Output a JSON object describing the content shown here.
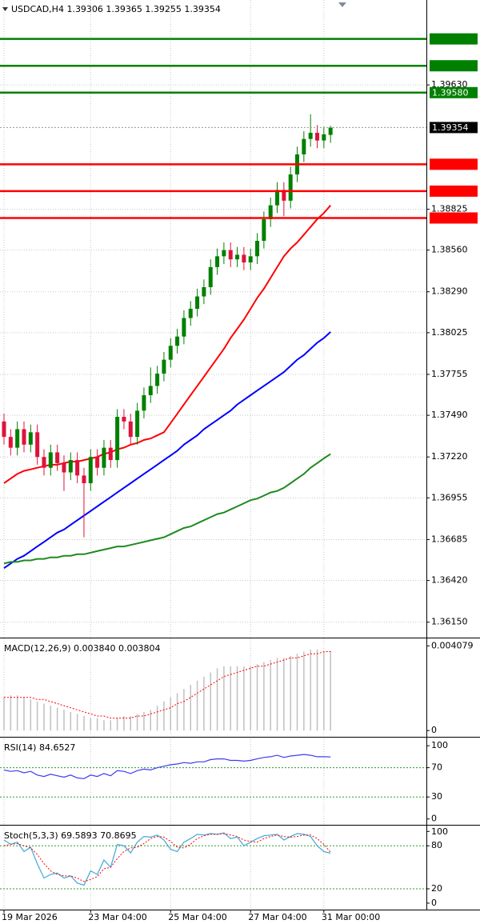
{
  "chart_data": [
    {
      "type": "candlestick",
      "title": "USDCAD,H4  1.39306 1.39365 1.39255 1.39354",
      "categories": [
        "19 Mar 2026",
        null,
        null,
        null,
        null,
        null,
        null,
        null,
        null,
        null,
        null,
        null,
        null,
        "23 Mar 04:00",
        null,
        null,
        null,
        null,
        null,
        null,
        null,
        null,
        null,
        null,
        null,
        "25 Mar 04:00",
        null,
        null,
        null,
        null,
        null,
        null,
        null,
        null,
        null,
        null,
        null,
        "27 Mar 04:00",
        null,
        null,
        null,
        null,
        null,
        null,
        null,
        null,
        null,
        null,
        "31 Mar 00:00",
        null
      ],
      "open": [
        1.3745,
        1.3735,
        1.3728,
        1.374,
        1.373,
        1.3738,
        1.3722,
        1.3715,
        1.3725,
        1.3718,
        1.3712,
        1.372,
        1.371,
        1.3705,
        1.3722,
        1.3715,
        1.3728,
        1.372,
        1.3748,
        1.3745,
        1.3735,
        1.3752,
        1.3762,
        1.3768,
        1.3776,
        1.3785,
        1.3794,
        1.38,
        1.3812,
        1.3818,
        1.3826,
        1.3832,
        1.3845,
        1.3852,
        1.3856,
        1.385,
        1.3853,
        1.3848,
        1.3852,
        1.3862,
        1.3876,
        1.3885,
        1.3895,
        1.3888,
        1.3905,
        1.3918,
        1.3928,
        1.3932,
        1.3927,
        1.39306
      ],
      "high": [
        1.375,
        1.374,
        1.3745,
        1.3745,
        1.3743,
        1.3743,
        1.3727,
        1.373,
        1.373,
        1.3723,
        1.3725,
        1.3725,
        1.3715,
        1.3727,
        1.3727,
        1.3733,
        1.3733,
        1.3753,
        1.3753,
        1.375,
        1.3757,
        1.3767,
        1.378,
        1.3781,
        1.379,
        1.3799,
        1.3805,
        1.3817,
        1.3823,
        1.3831,
        1.3837,
        1.385,
        1.3857,
        1.3861,
        1.3861,
        1.3858,
        1.3858,
        1.3857,
        1.3867,
        1.3881,
        1.389,
        1.39,
        1.39,
        1.391,
        1.3923,
        1.3933,
        1.3944,
        1.3937,
        1.3936,
        1.39365
      ],
      "low": [
        1.373,
        1.3723,
        1.3723,
        1.3725,
        1.3725,
        1.3717,
        1.371,
        1.371,
        1.3713,
        1.37,
        1.3707,
        1.3705,
        1.367,
        1.37,
        1.371,
        1.371,
        1.3715,
        1.3715,
        1.374,
        1.373,
        1.373,
        1.3747,
        1.3757,
        1.3763,
        1.3771,
        1.378,
        1.3789,
        1.3795,
        1.3807,
        1.3813,
        1.3821,
        1.3827,
        1.384,
        1.3847,
        1.3845,
        1.3845,
        1.3843,
        1.3843,
        1.3847,
        1.3857,
        1.3871,
        1.388,
        1.3878,
        1.3883,
        1.39,
        1.3913,
        1.3923,
        1.3922,
        1.3922,
        1.39255
      ],
      "close": [
        1.3735,
        1.3728,
        1.374,
        1.373,
        1.3738,
        1.3722,
        1.3715,
        1.3725,
        1.3718,
        1.3712,
        1.372,
        1.371,
        1.3705,
        1.3722,
        1.3715,
        1.3728,
        1.372,
        1.3748,
        1.3745,
        1.3735,
        1.3752,
        1.3762,
        1.3768,
        1.3776,
        1.3785,
        1.3794,
        1.38,
        1.3812,
        1.3818,
        1.3826,
        1.3832,
        1.3845,
        1.3852,
        1.3856,
        1.385,
        1.3853,
        1.3848,
        1.3852,
        1.3862,
        1.3876,
        1.3885,
        1.3895,
        1.3888,
        1.3905,
        1.3918,
        1.3928,
        1.3932,
        1.3927,
        1.3931,
        1.39354
      ],
      "up_color": "#008000",
      "down_color": "#dc143c",
      "lines": [
        {
          "color": "#ff0000",
          "values": [
            1.3705,
            1.3708,
            1.3711,
            1.3713,
            1.3714,
            1.3715,
            1.3716,
            1.3717,
            1.3717,
            1.3718,
            1.3719,
            1.3719,
            1.372,
            1.3721,
            1.3722,
            1.3724,
            1.3725,
            1.3727,
            1.3728,
            1.373,
            1.3731,
            1.3733,
            1.3734,
            1.3736,
            1.3738,
            1.3744,
            1.375,
            1.3756,
            1.3762,
            1.3768,
            1.3774,
            1.378,
            1.3786,
            1.3792,
            1.3799,
            1.3805,
            1.3811,
            1.3818,
            1.3825,
            1.3831,
            1.3838,
            1.3845,
            1.3852,
            1.3857,
            1.3861,
            1.3866,
            1.3871,
            1.3876,
            1.388,
            1.3885
          ]
        },
        {
          "color": "#0000ff",
          "values": [
            1.365,
            1.3653,
            1.3656,
            1.3658,
            1.3661,
            1.3664,
            1.3667,
            1.367,
            1.3673,
            1.3675,
            1.3678,
            1.3681,
            1.3684,
            1.3687,
            1.369,
            1.3693,
            1.3696,
            1.3699,
            1.3702,
            1.3705,
            1.3708,
            1.3711,
            1.3714,
            1.3717,
            1.372,
            1.3723,
            1.3726,
            1.373,
            1.3733,
            1.3736,
            1.374,
            1.3743,
            1.3746,
            1.3749,
            1.3752,
            1.3756,
            1.3759,
            1.3762,
            1.3765,
            1.3768,
            1.3771,
            1.3774,
            1.3777,
            1.3781,
            1.3785,
            1.3788,
            1.3792,
            1.3796,
            1.3799,
            1.3803
          ]
        },
        {
          "color": "#1f8a1f",
          "values": [
            1.3653,
            1.3654,
            1.3654,
            1.3655,
            1.3655,
            1.3656,
            1.3656,
            1.3657,
            1.3657,
            1.3658,
            1.3658,
            1.3659,
            1.3659,
            1.366,
            1.3661,
            1.3662,
            1.3663,
            1.3664,
            1.3664,
            1.3665,
            1.3666,
            1.3667,
            1.3668,
            1.3669,
            1.367,
            1.3672,
            1.3674,
            1.3676,
            1.3677,
            1.3679,
            1.3681,
            1.3683,
            1.3685,
            1.3686,
            1.3688,
            1.369,
            1.3692,
            1.3694,
            1.3695,
            1.3697,
            1.3699,
            1.37,
            1.3702,
            1.3705,
            1.3708,
            1.3711,
            1.3715,
            1.3718,
            1.3721,
            1.3724
          ]
        }
      ],
      "levels": [
        {
          "value": 1.39928,
          "color": "#008000"
        },
        {
          "value": 1.39754,
          "color": "#008000"
        },
        {
          "value": 1.3958,
          "label": "1.39580",
          "color": "#008000"
        },
        {
          "value": 1.39116,
          "color": "#ff0000"
        },
        {
          "value": 1.38942,
          "color": "#ff0000"
        },
        {
          "value": 1.38768,
          "color": "#ff0000"
        }
      ],
      "last_price": 1.39354,
      "ylim": [
        1.3605,
        1.4018
      ],
      "yticks": [
        {
          "value": 1.3963,
          "label": "1.39630"
        },
        1.38825,
        {
          "value": 1.3856,
          "label": "1.38560"
        },
        {
          "value": 1.3829,
          "label": "1.38290"
        },
        1.38025,
        1.37755,
        {
          "value": 1.3749,
          "label": "1.37490"
        },
        {
          "value": 1.3722,
          "label": "1.37220"
        },
        1.36955,
        1.36685,
        {
          "value": 1.3642,
          "label": "1.36420"
        },
        {
          "value": 1.3615,
          "label": "1.36150"
        }
      ],
      "grid": true
    },
    {
      "type": "macd",
      "title": "MACD(12,26,9) 0.003840 0.003804",
      "histogram": [
        0.0016,
        0.0017,
        0.0017,
        0.0016,
        0.0015,
        0.0014,
        0.0013,
        0.0012,
        0.0011,
        0.001,
        0.0009,
        0.0008,
        0.0007,
        0.0006,
        0.0006,
        0.0005,
        0.0005,
        0.0006,
        0.0007,
        0.0007,
        0.0008,
        0.0009,
        0.001,
        0.0012,
        0.0014,
        0.0016,
        0.0018,
        0.002,
        0.0022,
        0.0024,
        0.0026,
        0.0028,
        0.003,
        0.0031,
        0.0031,
        0.0031,
        0.0031,
        0.0031,
        0.0032,
        0.0033,
        0.0034,
        0.0035,
        0.0035,
        0.0036,
        0.0037,
        0.0038,
        0.0039,
        0.0039,
        0.0038,
        0.00384
      ],
      "signal": [
        0.0016,
        0.0016,
        0.0016,
        0.0016,
        0.0016,
        0.0015,
        0.0015,
        0.0014,
        0.0013,
        0.0012,
        0.0011,
        0.001,
        0.0009,
        0.0008,
        0.0007,
        0.0007,
        0.0006,
        0.0006,
        0.0006,
        0.0006,
        0.0007,
        0.0007,
        0.0008,
        0.0009,
        0.001,
        0.0011,
        0.0013,
        0.0014,
        0.0016,
        0.0018,
        0.002,
        0.0022,
        0.0024,
        0.0026,
        0.0027,
        0.0028,
        0.0029,
        0.003,
        0.0031,
        0.0031,
        0.0032,
        0.0033,
        0.0034,
        0.0035,
        0.0035,
        0.0036,
        0.0037,
        0.0037,
        0.0038,
        0.003804
      ],
      "histogram_color": "#c0c0c0",
      "signal_color": "#ff0000",
      "ylim": [
        -0.0003,
        0.0044
      ],
      "yticks": [
        0.004079,
        0
      ]
    },
    {
      "type": "rsi",
      "title": "RSI(14) 84.6527",
      "values": [
        67,
        65,
        66,
        63,
        65,
        60,
        58,
        61,
        59,
        57,
        60,
        56,
        55,
        60,
        58,
        62,
        59,
        66,
        65,
        62,
        66,
        68,
        67,
        70,
        72,
        74,
        75,
        77,
        76,
        78,
        78,
        81,
        82,
        82,
        80,
        80,
        79,
        80,
        82,
        84,
        85,
        87,
        84,
        86,
        87,
        88,
        87,
        85,
        85,
        84.6527
      ],
      "color": "#3c3cf0",
      "level_color": "#2e9a2e",
      "levels": [
        70,
        30
      ],
      "ylim": [
        -8,
        110
      ],
      "yticks": [
        100,
        70,
        30,
        0
      ]
    },
    {
      "type": "stochastic",
      "title": "Stoch(5,3,3) 69.5893 70.8695",
      "main": [
        88,
        82,
        85,
        72,
        78,
        55,
        35,
        40,
        42,
        35,
        38,
        28,
        25,
        45,
        40,
        60,
        50,
        82,
        80,
        70,
        85,
        93,
        92,
        95,
        88,
        75,
        72,
        85,
        90,
        96,
        95,
        97,
        96,
        98,
        90,
        92,
        80,
        85,
        90,
        94,
        95,
        96,
        88,
        93,
        97,
        96,
        93,
        80,
        72,
        69.5893
      ],
      "signal": [
        80,
        82,
        83,
        80,
        77,
        68,
        55,
        45,
        40,
        38,
        38,
        35,
        30,
        33,
        37,
        48,
        50,
        62,
        72,
        77,
        78,
        83,
        90,
        93,
        92,
        86,
        78,
        77,
        82,
        90,
        94,
        96,
        96,
        97,
        95,
        93,
        88,
        86,
        85,
        90,
        93,
        95,
        93,
        92,
        93,
        95,
        95,
        90,
        82,
        70.8695
      ],
      "main_color": "#3fa9d8",
      "signal_color": "#ff0000",
      "level_color": "#2e9a2e",
      "levels": [
        80,
        20
      ],
      "ylim": [
        -9,
        107
      ],
      "yticks": [
        100,
        80,
        20,
        0
      ]
    }
  ]
}
